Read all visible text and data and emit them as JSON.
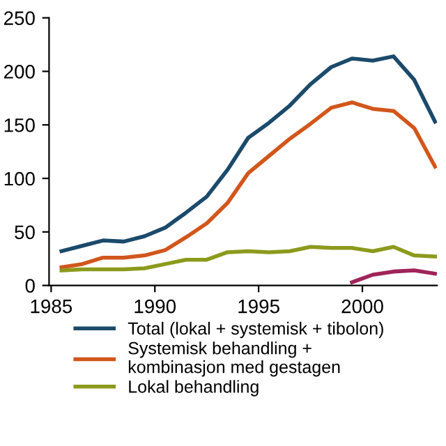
{
  "chart_data": {
    "type": "line",
    "x": [
      1985.5,
      1986.5,
      1987.5,
      1988.5,
      1989.5,
      1990.5,
      1991.5,
      1992.5,
      1993.5,
      1994.5,
      1995.5,
      1996.5,
      1997.5,
      1998.5,
      1999.5,
      2000.5,
      2001.5,
      2002.5,
      2003.5
    ],
    "series": [
      {
        "name": "Total (lokal + systemisk + tibolon)",
        "color": "#1b4a6b",
        "values": [
          32,
          37,
          42,
          41,
          46,
          54,
          68,
          83,
          108,
          138,
          152,
          168,
          188,
          204,
          212,
          210,
          214,
          192,
          153
        ]
      },
      {
        "name": "Systemisk behandling +\nkombinasjon med gestagen",
        "color": "#d2561c",
        "values": [
          17,
          20,
          26,
          26,
          28,
          33,
          45,
          58,
          77,
          105,
          121,
          137,
          151,
          166,
          171,
          165,
          163,
          147,
          111
        ]
      },
      {
        "name": "Lokal behandling",
        "color": "#8c9a1c",
        "values": [
          14,
          15,
          15,
          15,
          16,
          20,
          24,
          24,
          31,
          32,
          31,
          32,
          36,
          35,
          35,
          32,
          36,
          28,
          27
        ]
      },
      {
        "color": "#a0245a",
        "values": [
          null,
          null,
          null,
          null,
          null,
          null,
          null,
          null,
          null,
          null,
          null,
          null,
          null,
          null,
          3,
          10,
          13,
          14,
          11
        ]
      }
    ],
    "xlim": [
      1984.9,
      2003.6
    ],
    "xticks": [
      1985,
      1990,
      1995,
      2000
    ],
    "ylim": [
      0,
      250
    ],
    "yticks": [
      0,
      50,
      100,
      150,
      200,
      250
    ],
    "grid": false,
    "legend": "bottom",
    "marker": "none",
    "line_style": "solid"
  }
}
